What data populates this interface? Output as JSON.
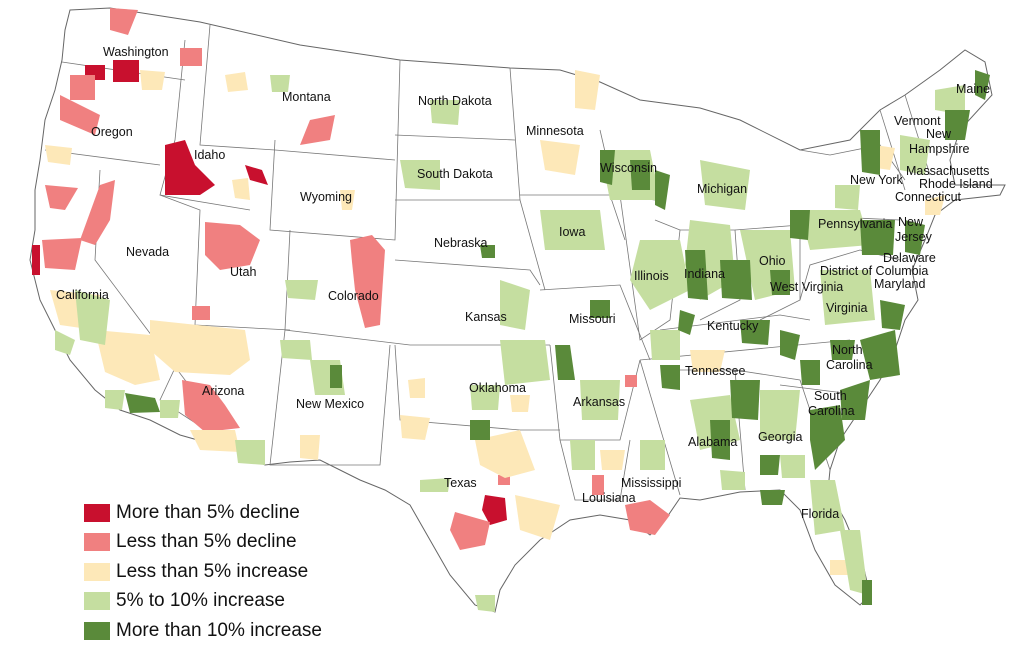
{
  "colors": {
    "more_than_5_decline": "#c8102e",
    "less_than_5_decline": "#f08080",
    "less_than_5_increase": "#fde8b8",
    "five_to_ten_increase": "#c5dea0",
    "more_than_10_increase": "#5a8a3a",
    "state_border": "#555555",
    "land": "#ffffff"
  },
  "legend": [
    {
      "key": "more_than_5_decline",
      "label": "More than 5% decline",
      "color": "#c8102e"
    },
    {
      "key": "less_than_5_decline",
      "label": "Less than 5% decline",
      "color": "#f08080"
    },
    {
      "key": "less_than_5_increase",
      "label": "Less than 5% increase",
      "color": "#fde8b8"
    },
    {
      "key": "five_to_ten_increase",
      "label": "5% to 10% increase",
      "color": "#c5dea0"
    },
    {
      "key": "more_than_10_increase",
      "label": "More than 10% increase",
      "color": "#5a8a3a"
    }
  ],
  "states": {
    "washington": "Washington",
    "oregon": "Oregon",
    "california": "California",
    "nevada": "Nevada",
    "idaho": "Idaho",
    "montana": "Montana",
    "wyoming": "Wyoming",
    "utah": "Utah",
    "arizona": "Arizona",
    "colorado": "Colorado",
    "new_mexico": "New Mexico",
    "north_dakota": "North Dakota",
    "south_dakota": "South Dakota",
    "nebraska": "Nebraska",
    "kansas": "Kansas",
    "oklahoma": "Oklahoma",
    "texas": "Texas",
    "minnesota": "Minnesota",
    "iowa": "Iowa",
    "missouri": "Missouri",
    "arkansas": "Arkansas",
    "louisiana": "Louisiana",
    "wisconsin": "Wisconsin",
    "illinois": "Illinois",
    "michigan": "Michigan",
    "indiana": "Indiana",
    "ohio": "Ohio",
    "kentucky": "Kentucky",
    "tennessee": "Tennessee",
    "mississippi": "Mississippi",
    "alabama": "Alabama",
    "georgia": "Georgia",
    "florida": "Florida",
    "south_carolina": "South\nCarolina",
    "north_carolina": "North\nCarolina",
    "virginia": "Virginia",
    "west_virginia": "West Virginia",
    "pennsylvania": "Pennsylvania",
    "new_york": "New York",
    "maryland": "Maryland",
    "delaware": "Delaware",
    "dc": "District of Columbia",
    "new_jersey": "New\nJersey",
    "connecticut": "Connecticut",
    "rhode_island": "Rhode Island",
    "massachusetts": "Massachusetts",
    "new_hampshire": "New\nHampshire",
    "vermont": "Vermont",
    "maine": "Maine"
  }
}
